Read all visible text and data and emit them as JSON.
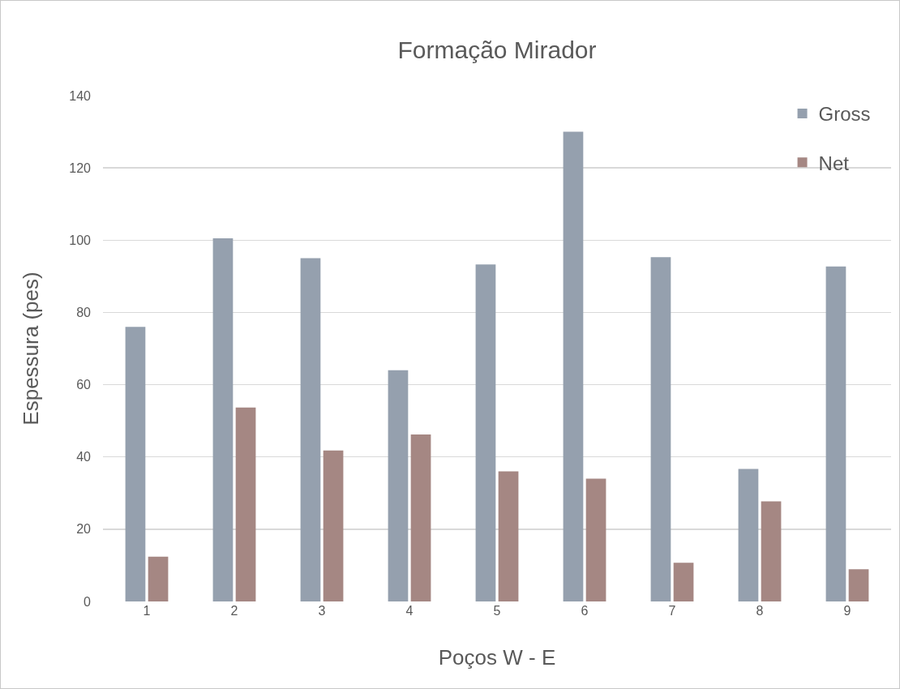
{
  "chart_data": {
    "type": "bar",
    "title": "Formação Mirador",
    "xlabel": "Poços W - E",
    "ylabel": "Espessura (pes)",
    "categories": [
      "1",
      "2",
      "3",
      "4",
      "5",
      "6",
      "7",
      "8",
      "9"
    ],
    "series": [
      {
        "name": "Gross",
        "color": "#95a0ae",
        "values": [
          76,
          100.5,
          95,
          64,
          93.3,
          130,
          95.3,
          36.7,
          92.7
        ]
      },
      {
        "name": "Net",
        "color": "#a58783",
        "values": [
          12.4,
          53.7,
          41.8,
          46.2,
          36,
          34,
          10.7,
          27.7,
          8.9
        ]
      }
    ],
    "ylim": [
      0,
      140
    ],
    "yticks": [
      0,
      20,
      40,
      60,
      80,
      100,
      120,
      140
    ],
    "grid": "y",
    "legend": "top right"
  }
}
